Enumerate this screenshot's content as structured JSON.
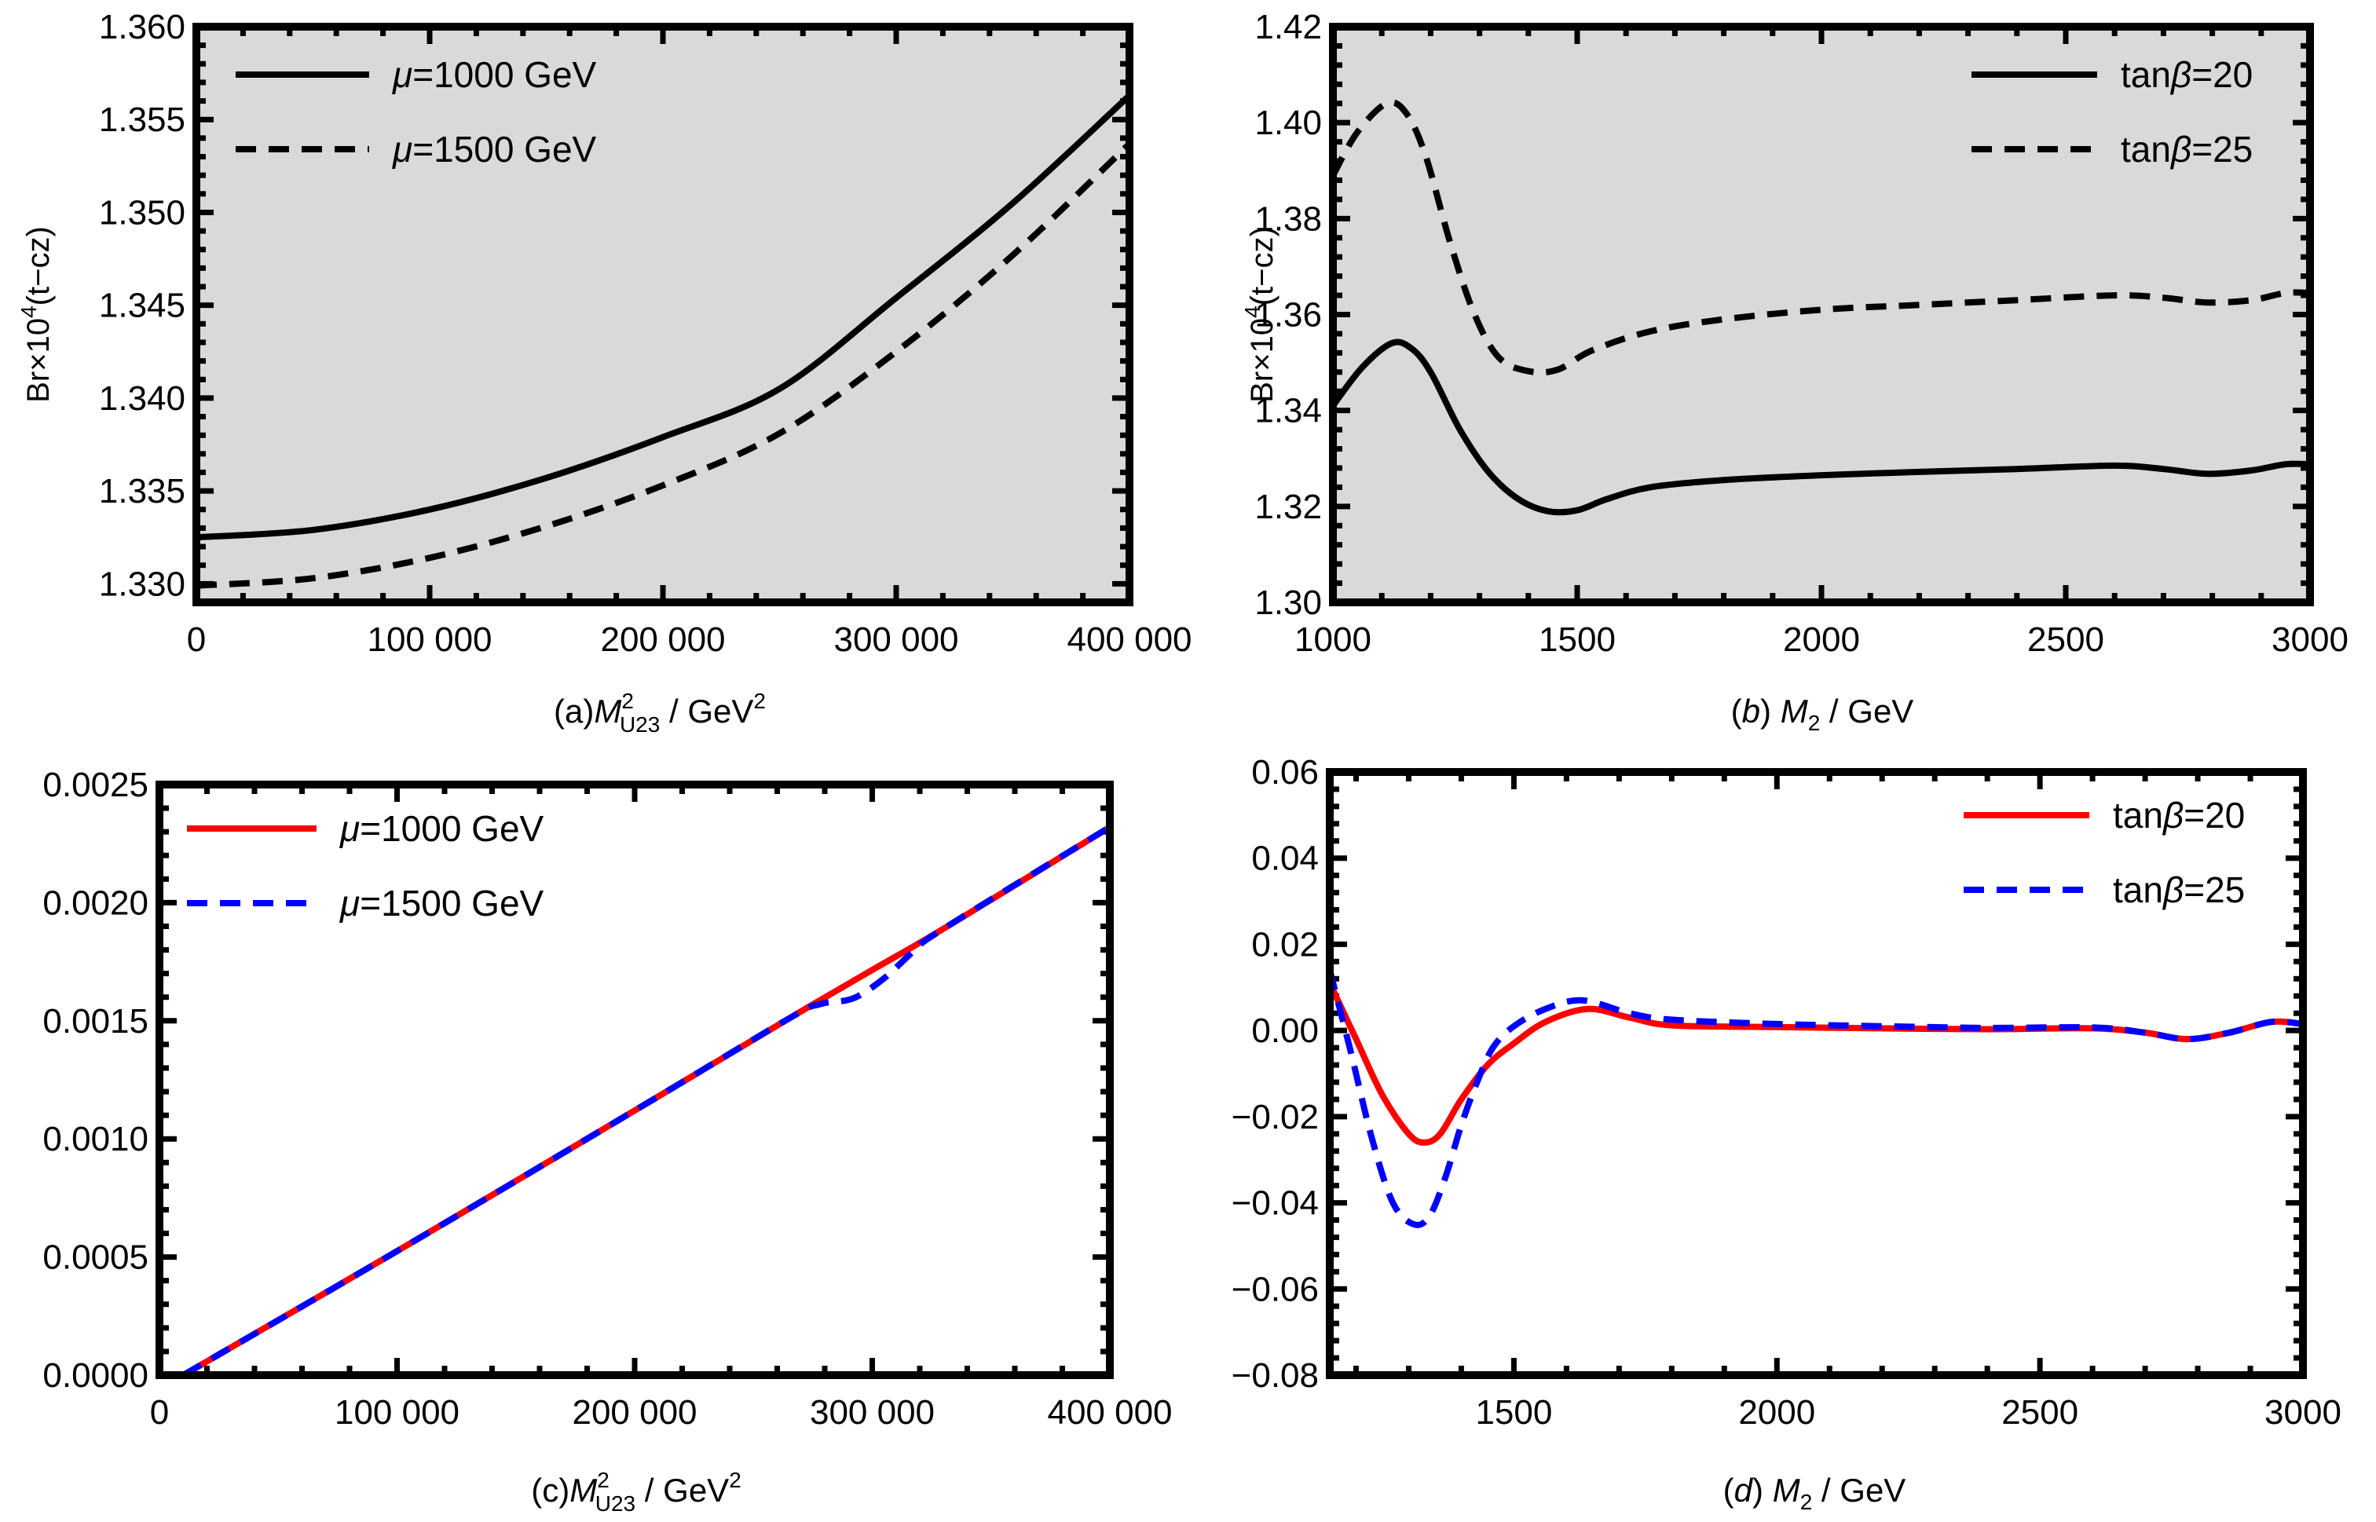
{
  "chart_data": [
    {
      "id": "a",
      "type": "line",
      "caption": {
        "prefix": "(a)",
        "var": "M",
        "sup": "2",
        "sub": "U23",
        "unit": "GeV",
        "unit_sup": "2"
      },
      "xlabel": "(a)M²_U23 / GeV²",
      "ylabel": "Br×10⁴(t−cz)",
      "ylabel_parts": {
        "base": "Br×10",
        "sup": "4",
        "rest": "(t−cz)"
      },
      "background": "#d9d9d9",
      "xlim": [
        0,
        400000
      ],
      "ylim": [
        1.329,
        1.36
      ],
      "xticks": [
        0,
        100000,
        200000,
        300000,
        400000
      ],
      "xtick_labels": [
        "0",
        "100 000",
        "200 000",
        "300 000",
        "400 000"
      ],
      "yticks": [
        1.33,
        1.335,
        1.34,
        1.345,
        1.35,
        1.355,
        1.36
      ],
      "ytick_labels": [
        "1.330",
        "1.335",
        "1.340",
        "1.345",
        "1.350",
        "1.355",
        "1.360"
      ],
      "legend_position": "top-left",
      "series": [
        {
          "name": "μ=1000 GeV",
          "label_pre": "μ",
          "label_post": "=1000 GeV",
          "color": "#000000",
          "dash": "solid",
          "x": [
            0,
            50000,
            100000,
            150000,
            200000,
            250000,
            300000,
            350000,
            400000
          ],
          "y": [
            1.3325,
            1.3329,
            1.334,
            1.3357,
            1.3379,
            1.3405,
            1.3454,
            1.3505,
            1.3563
          ]
        },
        {
          "name": "μ=1500 GeV",
          "label_pre": "μ",
          "label_post": "=1500 GeV",
          "color": "#000000",
          "dash": "dashed",
          "x": [
            0,
            50000,
            100000,
            150000,
            200000,
            250000,
            300000,
            350000,
            400000
          ],
          "y": [
            1.3299,
            1.3303,
            1.3314,
            1.3331,
            1.3353,
            1.3381,
            1.3425,
            1.3477,
            1.3537
          ]
        }
      ]
    },
    {
      "id": "b",
      "type": "line",
      "caption": {
        "prefix": "(b)",
        "var": "M",
        "sub": "2",
        "unit": "GeV"
      },
      "xlabel": "(b) M₂ / GeV",
      "ylabel": "Br×10⁴(t−cz)",
      "ylabel_parts": {
        "base": "Br×10",
        "sup": "4",
        "rest": "(t−cz)"
      },
      "background": "#d9d9d9",
      "xlim": [
        1000,
        3000
      ],
      "ylim": [
        1.3,
        1.42
      ],
      "xticks": [
        1000,
        1500,
        2000,
        2500,
        3000
      ],
      "xtick_labels": [
        "1000",
        "1500",
        "2000",
        "2500",
        "3000"
      ],
      "yticks": [
        1.3,
        1.32,
        1.34,
        1.36,
        1.38,
        1.4,
        1.42
      ],
      "ytick_labels": [
        "1.30",
        "1.32",
        "1.34",
        "1.36",
        "1.38",
        "1.40",
        "1.42"
      ],
      "legend_position": "top-right",
      "series": [
        {
          "name": "tanβ=20",
          "label_pre": "tan",
          "label_beta": "β",
          "label_post": "=20",
          "color": "#000000",
          "dash": "solid",
          "x": [
            1000,
            1060,
            1120,
            1160,
            1200,
            1260,
            1320,
            1380,
            1440,
            1500,
            1560,
            1650,
            1800,
            2000,
            2200,
            2400,
            2600,
            2700,
            2790,
            2880,
            2950,
            3000
          ],
          "y": [
            1.341,
            1.349,
            1.354,
            1.353,
            1.348,
            1.336,
            1.327,
            1.3215,
            1.319,
            1.3192,
            1.3215,
            1.324,
            1.3255,
            1.3265,
            1.3272,
            1.3278,
            1.3285,
            1.3278,
            1.3268,
            1.3275,
            1.3288,
            1.3288
          ]
        },
        {
          "name": "tanβ=25",
          "label_pre": "tan",
          "label_beta": "β",
          "label_post": "=25",
          "color": "#000000",
          "dash": "dashed",
          "x": [
            1000,
            1050,
            1110,
            1150,
            1190,
            1240,
            1290,
            1340,
            1400,
            1460,
            1530,
            1650,
            1800,
            2000,
            2200,
            2400,
            2600,
            2700,
            2790,
            2880,
            2950,
            3000
          ],
          "y": [
            1.389,
            1.398,
            1.404,
            1.402,
            1.393,
            1.375,
            1.36,
            1.351,
            1.3482,
            1.3485,
            1.3525,
            1.3565,
            1.359,
            1.361,
            1.362,
            1.363,
            1.364,
            1.3635,
            1.3625,
            1.363,
            1.3645,
            1.3645
          ]
        }
      ]
    },
    {
      "id": "c",
      "type": "line",
      "caption": {
        "prefix": "(c)",
        "var": "M",
        "sup": "2",
        "sub": "U23",
        "unit": "GeV",
        "unit_sup": "2"
      },
      "xlabel": "(c)M²_U23 / GeV²",
      "ylabel": "",
      "background": "#ffffff",
      "xlim": [
        0,
        400000
      ],
      "ylim": [
        0,
        0.0025
      ],
      "xticks": [
        0,
        100000,
        200000,
        300000,
        400000
      ],
      "xtick_labels": [
        "0",
        "100 000",
        "200 000",
        "300 000",
        "400 000"
      ],
      "yticks": [
        0,
        0.0005,
        0.001,
        0.0015,
        0.002,
        0.0025
      ],
      "ytick_labels": [
        "0.0000",
        "0.0005",
        "0.0010",
        "0.0015",
        "0.0020",
        "0.0025"
      ],
      "legend_position": "top-left",
      "series": [
        {
          "name": "μ=1000 GeV",
          "label_pre": "μ",
          "label_post": "=1000 GeV",
          "color": "#ff0000",
          "dash": "solid",
          "x": [
            10000,
            100000,
            200000,
            265000,
            300000,
            330000,
            400000
          ],
          "y": [
            0.0,
            0.000525,
            0.00112,
            0.00151,
            0.001715,
            0.00189,
            0.00232
          ]
        },
        {
          "name": "μ=1500 GeV",
          "label_pre": "μ",
          "label_post": "=1500 GeV",
          "color": "#0000ff",
          "dash": "dashed",
          "x": [
            10000,
            100000,
            200000,
            265000,
            278000,
            292000,
            305000,
            318000,
            330000,
            400000
          ],
          "y": [
            0.0,
            0.000525,
            0.00112,
            0.00151,
            0.00157,
            0.001595,
            0.00168,
            0.0018,
            0.00189,
            0.00232
          ]
        }
      ]
    },
    {
      "id": "d",
      "type": "line",
      "caption": {
        "prefix": "(d)",
        "var": "M",
        "sub": "2",
        "unit": "GeV"
      },
      "xlabel": "(d) M₂ / GeV",
      "ylabel": "",
      "background": "#ffffff",
      "xlim": [
        1150,
        3000
      ],
      "ylim": [
        -0.08,
        0.06
      ],
      "xticks": [
        1500,
        2000,
        2500,
        3000
      ],
      "xtick_labels": [
        "1500",
        "2000",
        "2500",
        "3000"
      ],
      "yticks": [
        -0.08,
        -0.06,
        -0.04,
        -0.02,
        0.0,
        0.02,
        0.04,
        0.06
      ],
      "ytick_labels": [
        "−0.08",
        "−0.06",
        "−0.04",
        "−0.02",
        "0.00",
        "0.02",
        "0.04",
        "0.06"
      ],
      "legend_position": "top-right",
      "series": [
        {
          "name": "tanβ=20",
          "label_pre": "tan",
          "label_beta": "β",
          "label_post": "=20",
          "color": "#ff0000",
          "dash": "solid",
          "x": [
            1150,
            1200,
            1250,
            1300,
            1330,
            1360,
            1400,
            1450,
            1500,
            1560,
            1640,
            1720,
            1800,
            2000,
            2200,
            2400,
            2600,
            2700,
            2780,
            2860,
            2940,
            3000
          ],
          "y": [
            0.011,
            -0.002,
            -0.015,
            -0.024,
            -0.026,
            -0.024,
            -0.016,
            -0.008,
            -0.003,
            0.002,
            0.005,
            0.003,
            0.0012,
            0.0008,
            0.0005,
            0.0003,
            0.0005,
            -0.0005,
            -0.002,
            -0.0005,
            0.002,
            0.0015
          ]
        },
        {
          "name": "tanβ=25",
          "label_pre": "tan",
          "label_beta": "β",
          "label_post": "=25",
          "color": "#0000ff",
          "dash": "dashed",
          "x": [
            1150,
            1190,
            1230,
            1270,
            1310,
            1340,
            1370,
            1400,
            1430,
            1460,
            1500,
            1560,
            1630,
            1720,
            1800,
            2000,
            2200,
            2400,
            2600,
            2700,
            2780,
            2860,
            2940,
            3000
          ],
          "y": [
            0.014,
            -0.005,
            -0.025,
            -0.04,
            -0.045,
            -0.043,
            -0.034,
            -0.022,
            -0.012,
            -0.004,
            0.001,
            0.005,
            0.007,
            0.004,
            0.0025,
            0.0015,
            0.001,
            0.0006,
            0.0007,
            -0.0005,
            -0.002,
            -0.0005,
            0.002,
            0.0015
          ]
        }
      ]
    }
  ]
}
